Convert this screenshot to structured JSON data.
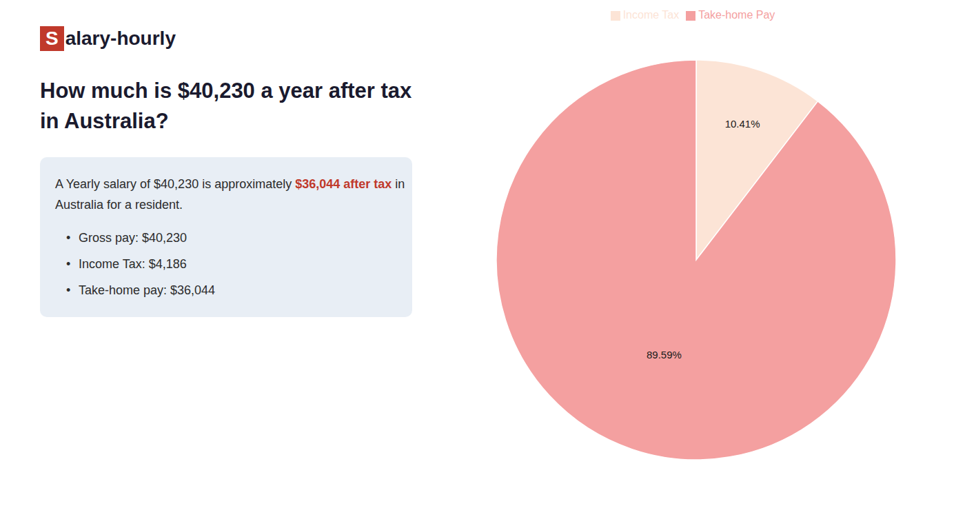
{
  "chart_data": {
    "type": "pie",
    "title": "How much is $40,230 a year after tax in Australia?",
    "categories": [
      "Income Tax",
      "Take-home Pay"
    ],
    "values": [
      10.41,
      89.59
    ],
    "value_labels": [
      "10.41%",
      "89.59%"
    ],
    "colors": [
      "#fce4d6",
      "#f4a0a0"
    ],
    "data_labels": true,
    "legend": "top",
    "annotations": [
      [
        {
          "text": "S",
          "color": "#c0392b"
        },
        {
          "text": "alary-hourly"
        }
      ],
      [
        {
          "text": "A Yearly salary of $40,230 is approximately "
        },
        {
          "text": "$36,044 after tax",
          "color": "#c0392b"
        },
        {
          "text": " in"
        }
      ],
      [
        {
          "text": "Australia for a resident."
        }
      ],
      [
        {
          "text": "•"
        },
        {
          "text": "Gross pay: $40,230"
        }
      ],
      [
        {
          "text": "•"
        },
        {
          "text": "Income Tax: $4,186"
        }
      ],
      [
        {
          "text": "•"
        },
        {
          "text": "Take-home pay: $36,044"
        }
      ]
    ]
  }
}
